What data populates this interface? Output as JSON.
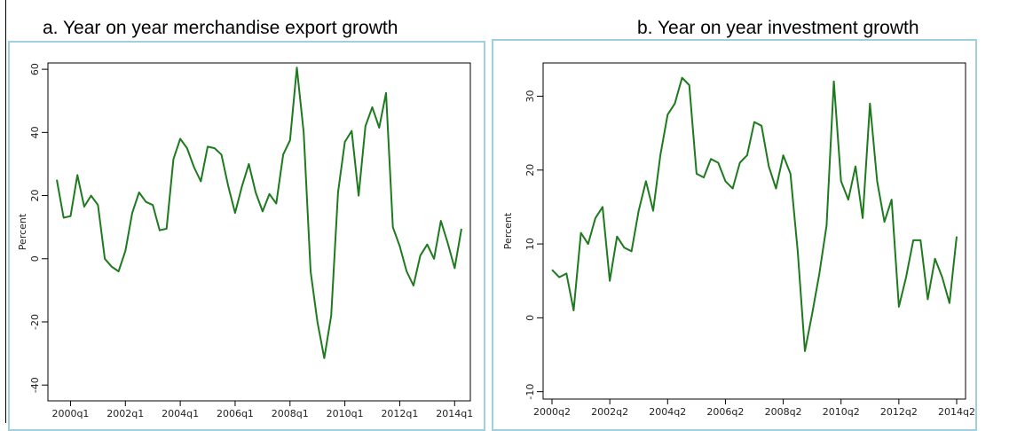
{
  "panels": {
    "a": {
      "title": "a. Year on year merchandise export growth"
    },
    "b": {
      "title": "b. Year on year investment growth"
    }
  },
  "colors": {
    "line": "#1e7a1e",
    "frame": "#9fd0e2",
    "axis": "#000000"
  },
  "chart_data": [
    {
      "type": "line",
      "title": "a. Year on year merchandise export growth",
      "xlabel": "",
      "ylabel": "Percent",
      "ylim": [
        -45,
        62
      ],
      "yticks": [
        -40,
        -20,
        0,
        20,
        40,
        60
      ],
      "xlim": [
        0,
        59
      ],
      "xticks": [
        {
          "pos": 2,
          "label": "2000q1"
        },
        {
          "pos": 10,
          "label": "2002q1"
        },
        {
          "pos": 18,
          "label": "2004q1"
        },
        {
          "pos": 26,
          "label": "2006q1"
        },
        {
          "pos": 34,
          "label": "2008q1"
        },
        {
          "pos": 42,
          "label": "2010q1"
        },
        {
          "pos": 50,
          "label": "2012q1"
        },
        {
          "pos": 58,
          "label": "2014q1"
        }
      ],
      "grid": false,
      "series": [
        {
          "x": [
            0,
            1,
            2,
            3,
            4,
            5,
            6,
            7,
            8,
            9,
            10,
            11,
            12,
            13,
            14,
            15,
            16,
            17,
            18,
            19,
            20,
            21,
            22,
            23,
            24,
            25,
            26,
            27,
            28,
            29,
            30,
            31,
            32,
            33,
            34,
            35,
            36,
            37,
            38,
            39,
            40,
            41,
            42,
            43,
            44,
            45,
            46,
            47,
            48,
            49,
            50,
            51,
            52,
            53,
            54,
            55,
            56,
            57,
            58,
            59
          ],
          "values": [
            25.0,
            13.0,
            13.5,
            26.5,
            16.5,
            20.0,
            17.0,
            0.0,
            -2.5,
            -4.0,
            2.5,
            14.5,
            21.0,
            18.0,
            17.0,
            9.0,
            9.5,
            31.5,
            38.0,
            35.0,
            29.0,
            24.5,
            35.5,
            35.0,
            33.0,
            23.0,
            14.5,
            23.0,
            30.0,
            21.0,
            15.0,
            20.5,
            17.5,
            33.0,
            37.5,
            60.5,
            40.0,
            -4.0,
            -20.0,
            -31.5,
            -18.0,
            21.0,
            37.0,
            40.5,
            20.0,
            42.0,
            48.0,
            41.5,
            52.5,
            10.0,
            4.0,
            -4.0,
            -8.5,
            1.0,
            4.5,
            0.0,
            12.0,
            5.0,
            -3.0,
            9.5
          ]
        }
      ]
    },
    {
      "type": "line",
      "title": "b. Year on year investment growth",
      "xlabel": "",
      "ylabel": "Percent",
      "ylim": [
        -11,
        34.5
      ],
      "yticks": [
        -10,
        0,
        10,
        20,
        30
      ],
      "xlim": [
        0,
        56
      ],
      "xticks": [
        {
          "pos": 0,
          "label": "2000q2"
        },
        {
          "pos": 8,
          "label": "2002q2"
        },
        {
          "pos": 16,
          "label": "2004q2"
        },
        {
          "pos": 24,
          "label": "2006q2"
        },
        {
          "pos": 32,
          "label": "2008q2"
        },
        {
          "pos": 40,
          "label": "2010q2"
        },
        {
          "pos": 48,
          "label": "2012q2"
        },
        {
          "pos": 56,
          "label": "2014q2"
        }
      ],
      "grid": false,
      "series": [
        {
          "x": [
            0,
            1,
            2,
            3,
            4,
            5,
            6,
            7,
            8,
            9,
            10,
            11,
            12,
            13,
            14,
            15,
            16,
            17,
            18,
            19,
            20,
            21,
            22,
            23,
            24,
            25,
            26,
            27,
            28,
            29,
            30,
            31,
            32,
            33,
            34,
            35,
            36,
            37,
            38,
            39,
            40,
            41,
            42,
            43,
            44,
            45,
            46,
            47,
            48,
            49,
            50,
            51,
            52,
            53,
            54,
            55,
            56
          ],
          "values": [
            6.5,
            5.5,
            6.0,
            1.0,
            11.5,
            10.0,
            13.5,
            15.0,
            5.0,
            11.0,
            9.5,
            9.0,
            14.5,
            18.5,
            14.5,
            22.0,
            27.5,
            29.0,
            32.5,
            31.5,
            19.5,
            19.0,
            21.5,
            21.0,
            18.5,
            17.5,
            21.0,
            22.0,
            26.5,
            26.0,
            20.5,
            17.5,
            22.0,
            19.5,
            9.0,
            -4.5,
            0.5,
            6.0,
            12.5,
            32.0,
            18.5,
            16.0,
            20.5,
            13.5,
            29.0,
            18.5,
            13.0,
            16.0,
            1.5,
            5.5,
            10.5,
            10.5,
            2.5,
            8.0,
            5.5,
            2.0,
            11.0
          ]
        }
      ]
    }
  ]
}
